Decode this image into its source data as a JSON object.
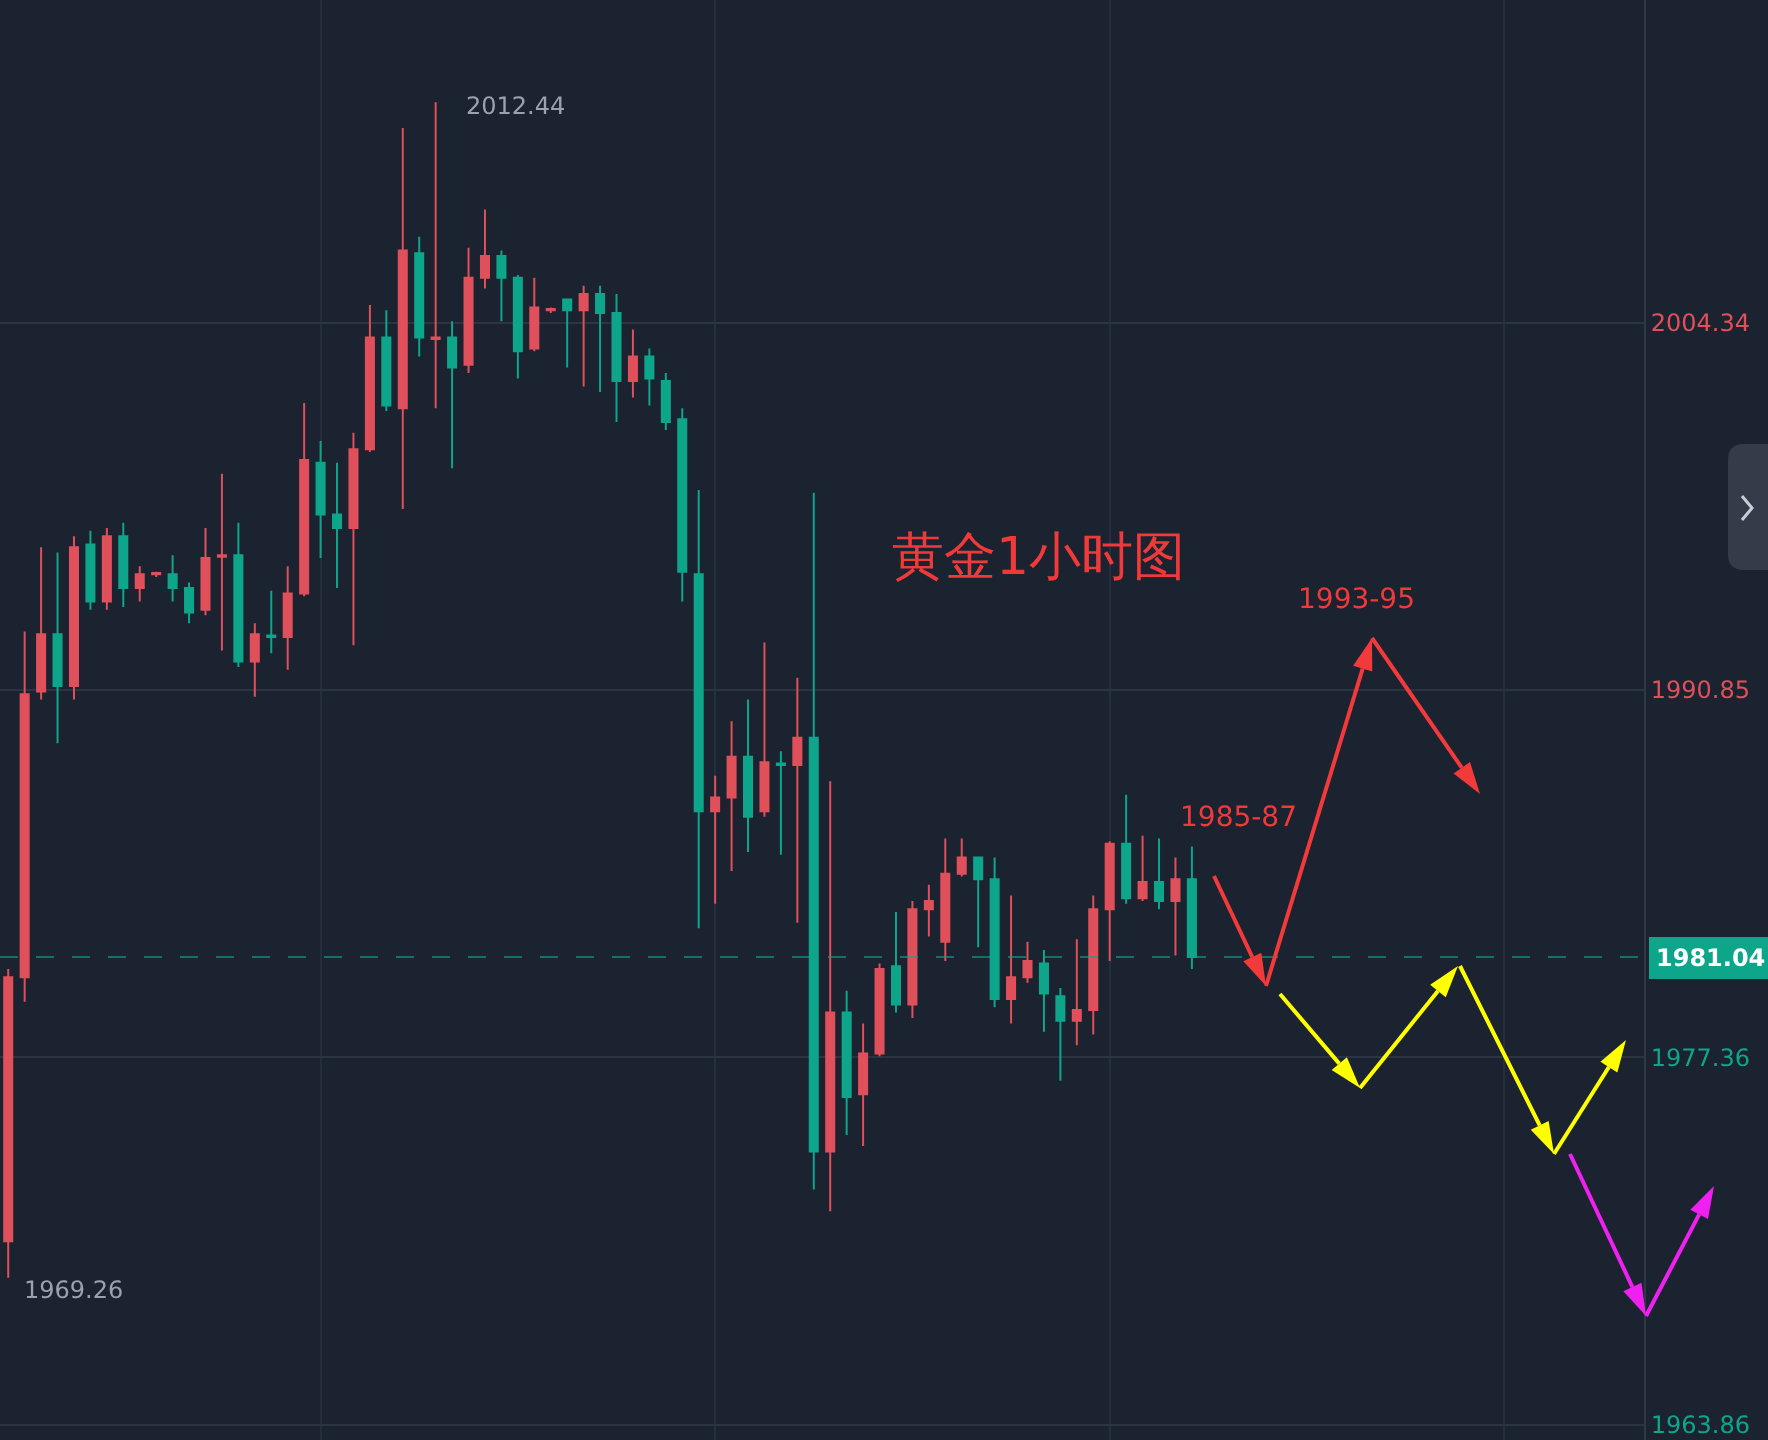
{
  "chart_data": {
    "type": "candlestick",
    "categories": [
      null,
      null,
      null,
      null,
      null,
      null,
      null,
      null,
      null,
      null,
      null,
      null,
      null,
      null,
      null,
      null,
      null,
      null,
      null,
      null,
      null,
      null,
      null,
      null,
      null,
      null,
      null,
      null,
      null,
      null,
      null,
      null,
      null,
      null,
      null,
      null,
      null,
      null,
      null,
      null,
      null,
      null,
      null,
      null,
      null,
      null,
      null,
      null,
      null,
      null,
      null,
      null,
      null,
      null,
      null,
      null,
      null,
      null,
      null,
      null,
      null,
      null,
      null,
      null,
      null,
      null,
      null,
      null,
      null,
      null,
      null,
      null,
      null,
      null,
      null,
      null,
      null,
      null,
      null,
      null,
      null,
      null,
      null,
      null,
      null,
      null,
      null,
      null,
      null,
      null,
      null,
      null,
      null,
      null,
      null,
      null,
      null,
      null,
      null,
      null
    ],
    "ohlc": [
      [
        1970.6,
        1980.6,
        1969.26,
        1980.3
      ],
      [
        1980.3,
        1993.0,
        1979.4,
        1990.7
      ],
      [
        1990.8,
        1996.1,
        1990.5,
        1992.9
      ],
      [
        1992.9,
        1995.9,
        1988.9,
        1991.0
      ],
      [
        1991.0,
        1996.5,
        1990.5,
        1996.1
      ],
      [
        1996.2,
        1996.7,
        1993.8,
        1994.1
      ],
      [
        1994.1,
        1996.8,
        1993.8,
        1996.5
      ],
      [
        1996.5,
        1997.0,
        1993.9,
        1994.6
      ],
      [
        1994.6,
        1995.4,
        1994.1,
        1995.1
      ],
      [
        1995.1,
        1995.2,
        1995.0,
        1995.15
      ],
      [
        1995.1,
        1995.8,
        1994.1,
        1994.6
      ],
      [
        1994.6,
        1994.8,
        1993.3,
        1993.7
      ],
      [
        1993.8,
        1996.8,
        1993.6,
        1995.7
      ],
      [
        1995.75,
        1998.8,
        1992.3,
        1995.8
      ],
      [
        1995.8,
        1997.0,
        1991.7,
        1991.9
      ],
      [
        1991.9,
        1993.3,
        1990.6,
        1992.9
      ],
      [
        1992.85,
        1994.5,
        1992.2,
        1992.8
      ],
      [
        1992.8,
        1995.4,
        1991.6,
        1994.4
      ],
      [
        1994.4,
        2001.4,
        1994.3,
        1999.3
      ],
      [
        1999.2,
        2000.0,
        1995.7,
        1997.3
      ],
      [
        1997.3,
        1999.2,
        1994.6,
        1996.8
      ],
      [
        1996.8,
        2000.3,
        1992.5,
        1999.7
      ],
      [
        1999.7,
        2005.0,
        1999.6,
        2003.8
      ],
      [
        2003.8,
        2004.8,
        2001.1,
        2001.3
      ],
      [
        2001.2,
        2011.5,
        1997.5,
        2007.0
      ],
      [
        2006.9,
        2007.5,
        2003.1,
        2003.8
      ],
      [
        2003.75,
        2012.44,
        2001.2,
        2003.8
      ],
      [
        2003.8,
        2004.4,
        1999.0,
        2002.7
      ],
      [
        2002.8,
        2007.1,
        2002.5,
        2006.0
      ],
      [
        2006.0,
        2008.5,
        2005.6,
        2006.8
      ],
      [
        2006.8,
        2007.0,
        2004.4,
        2006.0
      ],
      [
        2006.0,
        2006.1,
        2002.3,
        2003.3
      ],
      [
        2003.4,
        2006.0,
        2003.3,
        2004.9
      ],
      [
        2004.8,
        2004.9,
        2004.7,
        2004.85
      ],
      [
        2005.2,
        2005.2,
        2002.7,
        2004.8
      ],
      [
        2004.8,
        2005.7,
        2002.0,
        2005.4
      ],
      [
        2005.4,
        2005.7,
        2001.8,
        2004.7
      ],
      [
        2004.7,
        2005.4,
        2000.7,
        2002.2
      ],
      [
        2002.2,
        2004.1,
        2001.6,
        2003.1
      ],
      [
        2003.1,
        2003.4,
        2001.3,
        2002.3
      ],
      [
        2002.2,
        2002.5,
        2000.4,
        2000.7
      ],
      [
        2000.8,
        2001.2,
        1994.1,
        1995.2
      ],
      [
        1995.1,
        1998.2,
        1982.1,
        1986.4
      ],
      [
        1986.4,
        1987.7,
        1983.0,
        1986.9
      ],
      [
        1986.9,
        1989.7,
        1984.2,
        1988.4
      ],
      [
        1988.4,
        1990.5,
        1984.9,
        1986.2
      ],
      [
        1986.4,
        1992.6,
        1986.2,
        1988.2
      ],
      [
        1988.15,
        1988.6,
        1984.8,
        1988.1
      ],
      [
        1988.1,
        1991.3,
        1982.3,
        1989.1
      ],
      [
        1989.1,
        1998.1,
        1972.5,
        1973.9
      ],
      [
        1973.9,
        1987.5,
        1971.7,
        1979.0
      ],
      [
        1979.0,
        1979.8,
        1974.5,
        1975.9
      ],
      [
        1976.0,
        1978.6,
        1974.1,
        1977.5
      ],
      [
        1977.5,
        1980.8,
        1977.4,
        1980.6
      ],
      [
        1980.7,
        1982.7,
        1979.0,
        1979.3
      ],
      [
        1979.3,
        1983.1,
        1978.8,
        1982.8
      ],
      [
        1982.8,
        1983.7,
        1981.8,
        1983.1
      ],
      [
        1981.6,
        1985.4,
        1980.9,
        1984.1
      ],
      [
        1984.1,
        1985.4,
        1984.0,
        1984.7
      ],
      [
        1984.7,
        1984.7,
        1981.4,
        1983.9
      ],
      [
        1983.9,
        1984.7,
        1979.2,
        1979.5
      ],
      [
        1979.5,
        1983.3,
        1978.6,
        1980.3
      ],
      [
        1980.3,
        1981.6,
        1980.1,
        1980.9
      ],
      [
        1980.8,
        1981.3,
        1978.3,
        1979.7
      ],
      [
        1979.6,
        1979.9,
        1976.5,
        1978.7
      ],
      [
        1978.7,
        1981.7,
        1977.8,
        1979.1
      ],
      [
        1979.1,
        1983.3,
        1978.2,
        1982.8
      ],
      [
        1982.8,
        1985.3,
        1980.9,
        1985.2
      ],
      [
        1985.2,
        1987.0,
        1983.0,
        1983.2
      ],
      [
        1983.2,
        1985.5,
        1983.1,
        1983.8
      ],
      [
        1983.8,
        1985.4,
        1982.8,
        1983.1
      ],
      [
        1983.1,
        1984.7,
        1981.1,
        1983.9
      ],
      [
        1983.9,
        1985.1,
        1980.6,
        1981.04
      ],
      null,
      null,
      null,
      null,
      null,
      null,
      null,
      null,
      null,
      null,
      null,
      null,
      null,
      null,
      null,
      null,
      null,
      null,
      null,
      null,
      null,
      null,
      null,
      null,
      null,
      null,
      null
    ],
    "colors": [
      "#e0505b",
      "#e0505b",
      "#e0505b",
      "#0ea68b",
      "#e0505b",
      "#0ea68b",
      "#e0505b",
      "#0ea68b",
      "#e0505b",
      "#e0505b",
      "#0ea68b",
      "#0ea68b",
      "#e0505b",
      "#e0505b",
      "#0ea68b",
      "#e0505b",
      "#0ea68b",
      "#e0505b",
      "#e0505b",
      "#0ea68b",
      "#0ea68b",
      "#e0505b",
      "#e0505b",
      "#0ea68b",
      "#e0505b",
      "#0ea68b",
      "#e0505b",
      "#0ea68b",
      "#e0505b",
      "#e0505b",
      "#0ea68b",
      "#0ea68b",
      "#e0505b",
      "#e0505b",
      "#0ea68b",
      "#e0505b",
      "#0ea68b",
      "#0ea68b",
      "#e0505b",
      "#0ea68b",
      "#0ea68b",
      "#0ea68b",
      "#0ea68b",
      "#e0505b",
      "#e0505b",
      "#0ea68b",
      "#e0505b",
      "#0ea68b",
      "#e0505b",
      "#0ea68b",
      "#e0505b",
      "#0ea68b",
      "#e0505b",
      "#e0505b",
      "#0ea68b",
      "#e0505b",
      "#e0505b",
      "#e0505b",
      "#e0505b",
      "#0ea68b",
      "#0ea68b",
      "#e0505b",
      "#e0505b",
      "#0ea68b",
      "#0ea68b",
      "#e0505b",
      "#e0505b",
      "#e0505b",
      "#0ea68b",
      "#e0505b",
      "#0ea68b",
      "#e0505b",
      "#0ea68b",
      null,
      null,
      null,
      null,
      null,
      null,
      null,
      null,
      null,
      null,
      null,
      null,
      null,
      null,
      null,
      null,
      null,
      null,
      null,
      null,
      null,
      null,
      null,
      null,
      null,
      null,
      null
    ],
    "ylim": [
      1963.3,
      2016.2
    ],
    "yticks": [
      2004.34,
      1990.85,
      1977.36,
      1963.86
    ],
    "grid": true,
    "ref_lines": [
      {
        "axis": "y",
        "value": 1981.04,
        "label": "1981.04",
        "color": "#0ea68b",
        "line_style": "dashed"
      }
    ],
    "annotations": [
      "2012.44",
      "1969.26",
      "黄金1小时图",
      "1993-95",
      "1985-87"
    ]
  }
}
